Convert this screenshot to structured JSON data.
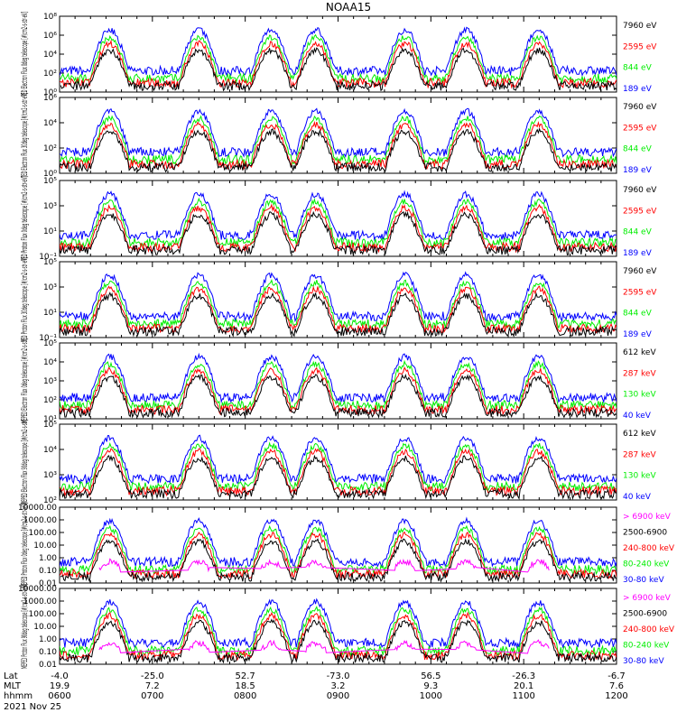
{
  "title": "NOAA15",
  "date_label": "2021 Nov 25",
  "axis_row_labels": [
    "Lat",
    "MLT",
    "hhmm"
  ],
  "x_ticks": [
    {
      "lat": "-4.0",
      "mlt": "19.9",
      "hhmm": "0600"
    },
    {
      "lat": "-25.0",
      "mlt": "7.2",
      "hhmm": "0700"
    },
    {
      "lat": "52.7",
      "mlt": "18.5",
      "hhmm": "0800"
    },
    {
      "lat": "-73.0",
      "mlt": "3.2",
      "hhmm": "0900"
    },
    {
      "lat": "56.5",
      "mlt": "9.3",
      "hhmm": "1000"
    },
    {
      "lat": "-26.3",
      "mlt": "20.1",
      "hhmm": "1100"
    },
    {
      "lat": "-6.7",
      "mlt": "7.6",
      "hhmm": "1200"
    }
  ],
  "colors": {
    "blue": "#0000ff",
    "red": "#ff0000",
    "green": "#00ee00",
    "black": "#000000",
    "magenta": "#ff00ff"
  },
  "chart_data": [
    {
      "type": "line",
      "ylabel": "TED Electron Flux 0deg telescope [#/cm2-s-str-eV]",
      "y_scale": "log",
      "y_ticks": [
        "10⁰",
        "10²",
        "10⁴",
        "10⁶",
        "10⁸"
      ],
      "ylim": [
        1,
        100000000
      ],
      "series": [
        {
          "name": "7960 eV",
          "color": "black"
        },
        {
          "name": "2595 eV",
          "color": "red"
        },
        {
          "name": "844 eV",
          "color": "green"
        },
        {
          "name": "189 eV",
          "color": "blue"
        }
      ]
    },
    {
      "type": "line",
      "ylabel": "TED Electron Flux 30deg telescope [#/cm2-s-str-eV]",
      "y_scale": "log",
      "y_ticks": [
        "10⁰",
        "10²",
        "10⁴",
        "10⁶"
      ],
      "ylim": [
        1,
        1000000
      ],
      "series": [
        {
          "name": "7960 eV",
          "color": "black"
        },
        {
          "name": "2595 eV",
          "color": "red"
        },
        {
          "name": "844 eV",
          "color": "green"
        },
        {
          "name": "189 eV",
          "color": "blue"
        }
      ]
    },
    {
      "type": "line",
      "ylabel": "TED Proton Flux 0deg telescope [#/cm2-s-str-eV]",
      "y_scale": "log",
      "y_ticks": [
        "10⁻¹",
        "10¹",
        "10³",
        "10⁵"
      ],
      "ylim": [
        0.1,
        100000
      ],
      "series": [
        {
          "name": "7960 eV",
          "color": "black"
        },
        {
          "name": "2595 eV",
          "color": "red"
        },
        {
          "name": "844 eV",
          "color": "green"
        },
        {
          "name": "189 eV",
          "color": "blue"
        }
      ]
    },
    {
      "type": "line",
      "ylabel": "TED Proton Flux 30deg telescope [#/cm2-s-str-eV]",
      "y_scale": "log",
      "y_ticks": [
        "10⁻¹",
        "10¹",
        "10³",
        "10⁵"
      ],
      "ylim": [
        0.1,
        100000
      ],
      "series": [
        {
          "name": "7960 eV",
          "color": "black"
        },
        {
          "name": "2595 eV",
          "color": "red"
        },
        {
          "name": "844 eV",
          "color": "green"
        },
        {
          "name": "189 eV",
          "color": "blue"
        }
      ]
    },
    {
      "type": "line",
      "ylabel": "MEPED Electron Flux 0deg telescope [#/cm2-s-str]",
      "y_scale": "log",
      "y_ticks": [
        "10¹",
        "10²",
        "10³",
        "10⁴",
        "10⁵"
      ],
      "ylim": [
        10,
        100000
      ],
      "series": [
        {
          "name": "612 keV",
          "color": "black"
        },
        {
          "name": "287 keV",
          "color": "red"
        },
        {
          "name": "130 keV",
          "color": "green"
        },
        {
          "name": "40 keV",
          "color": "blue"
        }
      ]
    },
    {
      "type": "line",
      "ylabel": "MEPED Electron Flux 90deg telescope [#/cm2-s-str]",
      "y_scale": "log",
      "y_ticks": [
        "10²",
        "10³",
        "10⁴",
        "10⁵"
      ],
      "ylim": [
        100,
        100000
      ],
      "series": [
        {
          "name": "612 keV",
          "color": "black"
        },
        {
          "name": "287 keV",
          "color": "red"
        },
        {
          "name": "130 keV",
          "color": "green"
        },
        {
          "name": "40 keV",
          "color": "blue"
        }
      ]
    },
    {
      "type": "line",
      "ylabel": "MEPED Proton Flux 0deg telescope [#/cm2-s-str-keV]",
      "y_scale": "log",
      "y_ticks": [
        "0.01",
        "0.10",
        "1.00",
        "10.00",
        "100.00",
        "1000.00",
        "10000.00"
      ],
      "ylim": [
        0.01,
        10000
      ],
      "series": [
        {
          "name": "> 6900 keV",
          "color": "magenta"
        },
        {
          "name": "2500-6900",
          "color": "black"
        },
        {
          "name": "240-800 keV",
          "color": "red"
        },
        {
          "name": "80-240 keV",
          "color": "green"
        },
        {
          "name": "30-80 keV",
          "color": "blue"
        }
      ]
    },
    {
      "type": "line",
      "ylabel": "MEPED Proton Flux 90deg telescope [#/cm2-s-str-keV]",
      "y_scale": "log",
      "y_ticks": [
        "0.01",
        "0.10",
        "1.00",
        "10.00",
        "100.00",
        "1000.00",
        "10000.00"
      ],
      "ylim": [
        0.01,
        10000
      ],
      "series": [
        {
          "name": "> 6900 keV",
          "color": "magenta"
        },
        {
          "name": "2500-6900",
          "color": "black"
        },
        {
          "name": "240-800 keV",
          "color": "red"
        },
        {
          "name": "80-240 keV",
          "color": "green"
        },
        {
          "name": "30-80 keV",
          "color": "blue"
        }
      ]
    }
  ]
}
